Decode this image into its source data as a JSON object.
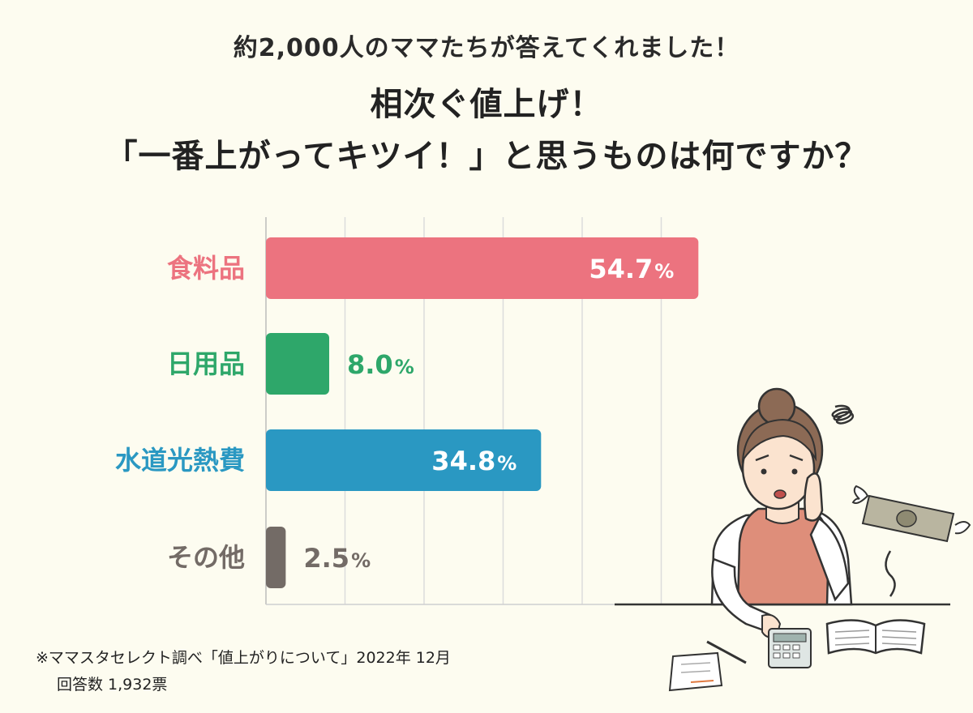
{
  "header": {
    "subtitle": "約2,000人のママたちが答えてくれました！",
    "title_line1": "相次ぐ値上げ！",
    "title_line2": "「一番上がってキツイ！」と思うものは何ですか？"
  },
  "chart_data": {
    "type": "bar",
    "orientation": "horizontal",
    "categories": [
      "食料品",
      "日用品",
      "水道光熱費",
      "その他"
    ],
    "values": [
      54.7,
      8.0,
      34.8,
      2.5
    ],
    "value_labels": [
      "54.7",
      "8.0",
      "34.8",
      "2.5"
    ],
    "unit": "%",
    "colors": [
      "#ec737f",
      "#2ea76a",
      "#2a98c2",
      "#736b66"
    ],
    "grid": true,
    "title": "",
    "xlabel": "",
    "ylabel": ""
  },
  "footer": {
    "note1": "※ママスタセレクト調べ「値上がりについて」2022年 12月",
    "note2": "回答数 1,932票"
  }
}
